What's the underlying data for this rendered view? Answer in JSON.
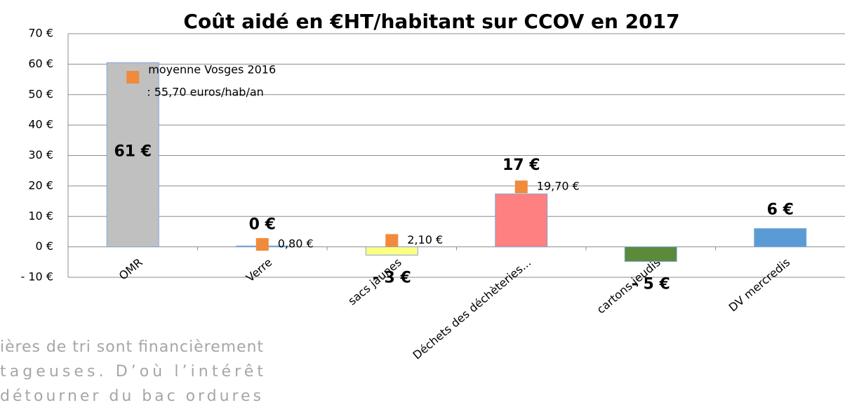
{
  "chart_data": {
    "type": "bar",
    "title": "Coût aidé en €HT/habitant sur CCOV en 2017",
    "categories": [
      "OMR",
      "Verre",
      "sacs jaunes",
      "Déchets des déchèteries...",
      "cartons jeudis",
      "DV mercredis"
    ],
    "values": [
      60.5,
      0.3,
      -2.7,
      17.4,
      -4.8,
      6.0
    ],
    "value_labels": [
      "61 €",
      "0 €",
      "- 3 €",
      "17 €",
      "- 5 €",
      "6 €"
    ],
    "colors": [
      "#c0c0c0",
      "#5b9bd5",
      "#ffff80",
      "#ff8080",
      "#5a8a3a",
      "#5b9bd5"
    ],
    "series": [
      {
        "name": "moyenne Vosges 2016",
        "color": "#f08a3c",
        "values": [
          55.7,
          0.8,
          2.1,
          19.7,
          null,
          null
        ],
        "value_labels": [
          ": 55,70 euros/hab/an",
          "0,80 €",
          "2,10 €",
          "19,70 €",
          null,
          null
        ]
      }
    ],
    "ylim": [
      -10,
      70
    ],
    "yticks": [
      {
        "value": -10,
        "label": "- 10 €"
      },
      {
        "value": 0,
        "label": "0 €"
      },
      {
        "value": 10,
        "label": "10 €"
      },
      {
        "value": 20,
        "label": "20 €"
      },
      {
        "value": 30,
        "label": "30 €"
      },
      {
        "value": 40,
        "label": "40 €"
      },
      {
        "value": 50,
        "label": "50 €"
      },
      {
        "value": 60,
        "label": "60 €"
      },
      {
        "value": 70,
        "label": "70 €"
      }
    ],
    "grid": true
  },
  "document_text": [
    "ières de tri sont financièrement",
    "tageuses. D’où l’intérêt",
    "détourner du bac ordures"
  ]
}
